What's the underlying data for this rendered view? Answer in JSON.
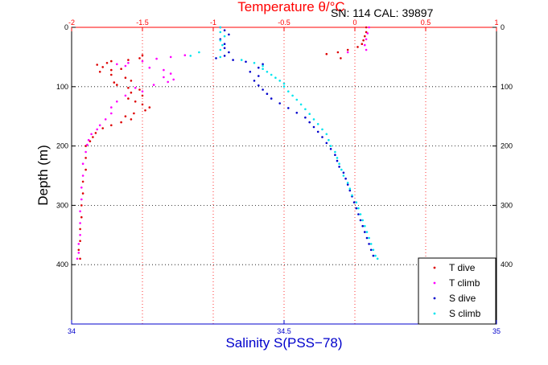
{
  "chart_data": {
    "type": "scatter",
    "title": "Temperature θ/°C",
    "annotation": "SN: 114  CAL: 39897",
    "xlabel_bottom": "Salinity S(PSS−78)",
    "xlabel_top": "Temperature θ/°C",
    "ylabel": "Depth (m)",
    "grid": true,
    "legend_position": "bottom-right",
    "y_axis": {
      "range": [
        0,
        500
      ],
      "reversed": true,
      "ticks": [
        0,
        100,
        200,
        300,
        400
      ],
      "tick_labels": [
        "0",
        "100",
        "200",
        "300",
        "400"
      ]
    },
    "x_bottom_axis": {
      "range": [
        34,
        35
      ],
      "ticks": [
        34,
        34.5,
        35
      ],
      "tick_labels": [
        "34",
        "34.5",
        "35"
      ],
      "color": "#0000cc"
    },
    "x_top_axis": {
      "range": [
        -2,
        1
      ],
      "ticks": [
        -2,
        -1.5,
        -1,
        -0.5,
        0,
        0.5,
        1
      ],
      "tick_labels": [
        "-2",
        "-1.5",
        "-1",
        "-0.5",
        "0",
        "0.5",
        "1"
      ],
      "color": "#ff0000"
    },
    "series": [
      {
        "name": "T dive",
        "axis": "top",
        "color": "#dd0000",
        "points": [
          [
            0.08,
            0
          ],
          [
            0.08,
            8
          ],
          [
            0.07,
            15
          ],
          [
            0.06,
            22
          ],
          [
            0.05,
            28
          ],
          [
            0.02,
            33
          ],
          [
            -0.05,
            38
          ],
          [
            -0.12,
            42
          ],
          [
            -0.2,
            45
          ],
          [
            -0.1,
            52
          ],
          [
            -1.5,
            47
          ],
          [
            -1.52,
            52
          ],
          [
            -1.6,
            55
          ],
          [
            -1.72,
            57
          ],
          [
            -1.75,
            60
          ],
          [
            -1.82,
            63
          ],
          [
            -1.78,
            67
          ],
          [
            -1.65,
            70
          ],
          [
            -1.72,
            72
          ],
          [
            -1.8,
            75
          ],
          [
            -1.72,
            80
          ],
          [
            -1.62,
            85
          ],
          [
            -1.58,
            90
          ],
          [
            -1.7,
            93
          ],
          [
            -1.68,
            97
          ],
          [
            -1.6,
            102
          ],
          [
            -1.52,
            105
          ],
          [
            -1.58,
            110
          ],
          [
            -1.5,
            115
          ],
          [
            -1.6,
            120
          ],
          [
            -1.55,
            125
          ],
          [
            -1.5,
            130
          ],
          [
            -1.45,
            135
          ],
          [
            -1.48,
            140
          ],
          [
            -1.56,
            145
          ],
          [
            -1.62,
            150
          ],
          [
            -1.58,
            155
          ],
          [
            -1.65,
            160
          ],
          [
            -1.72,
            165
          ],
          [
            -1.78,
            170
          ],
          [
            -1.83,
            178
          ],
          [
            -1.85,
            185
          ],
          [
            -1.87,
            192
          ],
          [
            -1.9,
            200
          ],
          [
            -1.9,
            220
          ],
          [
            -1.9,
            240
          ],
          [
            -1.92,
            260
          ],
          [
            -1.92,
            280
          ],
          [
            -1.93,
            300
          ],
          [
            -1.93,
            320
          ],
          [
            -1.94,
            340
          ],
          [
            -1.94,
            360
          ],
          [
            -1.95,
            375
          ],
          [
            -1.94,
            390
          ]
        ]
      },
      {
        "name": "T climb",
        "axis": "top",
        "color": "#ff00ff",
        "points": [
          [
            0.1,
            0
          ],
          [
            0.09,
            10
          ],
          [
            0.08,
            20
          ],
          [
            0.07,
            30
          ],
          [
            0.08,
            38
          ],
          [
            -0.05,
            42
          ],
          [
            -1.2,
            47
          ],
          [
            -1.3,
            50
          ],
          [
            -1.4,
            53
          ],
          [
            -1.5,
            57
          ],
          [
            -1.6,
            60
          ],
          [
            -1.68,
            62
          ],
          [
            -1.62,
            65
          ],
          [
            -1.45,
            68
          ],
          [
            -1.35,
            72
          ],
          [
            -1.3,
            78
          ],
          [
            -1.35,
            84
          ],
          [
            -1.28,
            88
          ],
          [
            -1.32,
            92
          ],
          [
            -1.42,
            97
          ],
          [
            -1.55,
            102
          ],
          [
            -1.5,
            108
          ],
          [
            -1.62,
            115
          ],
          [
            -1.68,
            125
          ],
          [
            -1.72,
            135
          ],
          [
            -1.72,
            145
          ],
          [
            -1.76,
            155
          ],
          [
            -1.8,
            165
          ],
          [
            -1.82,
            172
          ],
          [
            -1.86,
            180
          ],
          [
            -1.88,
            190
          ],
          [
            -1.89,
            198
          ],
          [
            -1.9,
            210
          ],
          [
            -1.92,
            230
          ],
          [
            -1.92,
            250
          ],
          [
            -1.93,
            270
          ],
          [
            -1.93,
            290
          ],
          [
            -1.94,
            310
          ],
          [
            -1.94,
            330
          ],
          [
            -1.94,
            350
          ],
          [
            -1.95,
            365
          ],
          [
            -1.95,
            380
          ],
          [
            -1.96,
            390
          ]
        ]
      },
      {
        "name": "S dive",
        "axis": "bottom",
        "color": "#0000cc",
        "points": [
          [
            34.35,
            0
          ],
          [
            34.36,
            5
          ],
          [
            34.37,
            12
          ],
          [
            34.35,
            20
          ],
          [
            34.36,
            28
          ],
          [
            34.36,
            35
          ],
          [
            34.37,
            42
          ],
          [
            34.36,
            48
          ],
          [
            34.34,
            52
          ],
          [
            34.38,
            55
          ],
          [
            34.41,
            58
          ],
          [
            34.45,
            62
          ],
          [
            34.44,
            68
          ],
          [
            34.42,
            75
          ],
          [
            34.44,
            82
          ],
          [
            34.43,
            90
          ],
          [
            34.44,
            98
          ],
          [
            34.45,
            105
          ],
          [
            34.46,
            112
          ],
          [
            34.47,
            120
          ],
          [
            34.49,
            128
          ],
          [
            34.51,
            136
          ],
          [
            34.53,
            144
          ],
          [
            34.55,
            152
          ],
          [
            34.56,
            160
          ],
          [
            34.57,
            168
          ],
          [
            34.58,
            176
          ],
          [
            34.59,
            185
          ],
          [
            34.6,
            195
          ],
          [
            34.61,
            205
          ],
          [
            34.62,
            215
          ],
          [
            34.625,
            225
          ],
          [
            34.63,
            235
          ],
          [
            34.64,
            245
          ],
          [
            34.645,
            255
          ],
          [
            34.65,
            265
          ],
          [
            34.655,
            275
          ],
          [
            34.66,
            285
          ],
          [
            34.665,
            295
          ],
          [
            34.67,
            305
          ],
          [
            34.675,
            315
          ],
          [
            34.68,
            325
          ],
          [
            34.685,
            335
          ],
          [
            34.69,
            345
          ],
          [
            34.695,
            355
          ],
          [
            34.7,
            365
          ],
          [
            34.705,
            375
          ],
          [
            34.71,
            385
          ]
        ]
      },
      {
        "name": "S climb",
        "axis": "bottom",
        "color": "#00e5ee",
        "points": [
          [
            34.35,
            0
          ],
          [
            34.35,
            8
          ],
          [
            34.36,
            15
          ],
          [
            34.35,
            22
          ],
          [
            34.355,
            30
          ],
          [
            34.35,
            38
          ],
          [
            34.3,
            42
          ],
          [
            34.28,
            48
          ],
          [
            34.35,
            50
          ],
          [
            34.4,
            55
          ],
          [
            34.43,
            60
          ],
          [
            34.45,
            65
          ],
          [
            34.45,
            70
          ],
          [
            34.46,
            75
          ],
          [
            34.47,
            80
          ],
          [
            34.48,
            85
          ],
          [
            34.49,
            90
          ],
          [
            34.5,
            95
          ],
          [
            34.5,
            100
          ],
          [
            34.51,
            108
          ],
          [
            34.52,
            115
          ],
          [
            34.53,
            122
          ],
          [
            34.54,
            130
          ],
          [
            34.55,
            138
          ],
          [
            34.56,
            146
          ],
          [
            34.57,
            155
          ],
          [
            34.58,
            163
          ],
          [
            34.59,
            172
          ],
          [
            34.6,
            180
          ],
          [
            34.605,
            190
          ],
          [
            34.61,
            200
          ],
          [
            34.62,
            210
          ],
          [
            34.625,
            220
          ],
          [
            34.63,
            230
          ],
          [
            34.635,
            240
          ],
          [
            34.64,
            250
          ],
          [
            34.65,
            262
          ],
          [
            34.655,
            272
          ],
          [
            34.66,
            283
          ],
          [
            34.67,
            295
          ],
          [
            34.675,
            305
          ],
          [
            34.68,
            315
          ],
          [
            34.685,
            325
          ],
          [
            34.69,
            335
          ],
          [
            34.695,
            345
          ],
          [
            34.7,
            355
          ],
          [
            34.705,
            365
          ],
          [
            34.71,
            375
          ],
          [
            34.715,
            385
          ],
          [
            34.72,
            390
          ]
        ]
      }
    ]
  }
}
